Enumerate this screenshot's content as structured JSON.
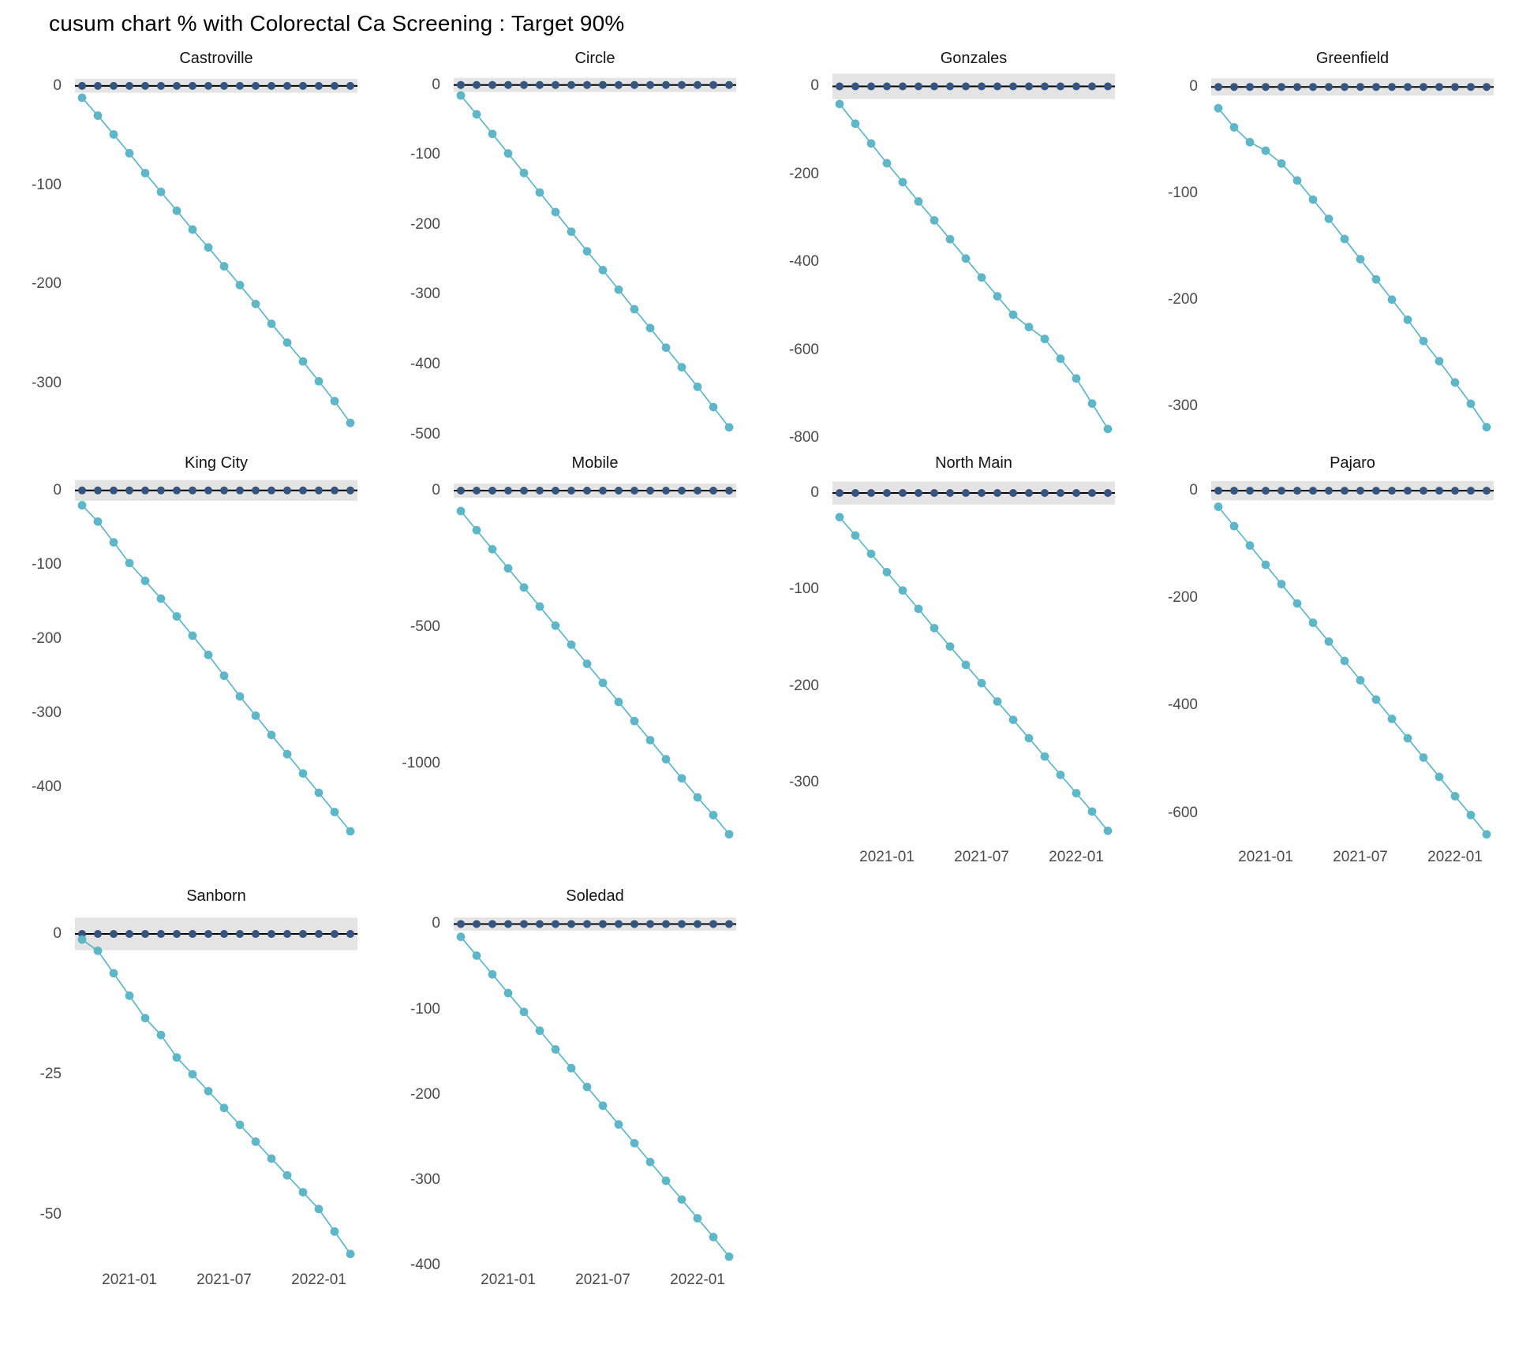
{
  "page_title": "cusum chart % with Colorectal Ca Screening : Target 90%",
  "colors": {
    "cusum_up_point": "#36547e",
    "cusum_up_line": "#000000",
    "cusum_down": "#5eb6c6",
    "control_band": "#e4e4e4",
    "tick_label": "#4a4a4a",
    "strip_label": "#141414",
    "background": "#ffffff"
  },
  "chart_data": {
    "type": "line",
    "title": "cusum chart % with Colorectal Ca Screening : Target 90%",
    "xlabel": "",
    "ylabel": "",
    "legend_position": "none",
    "grid": false,
    "x": [
      "2020-10",
      "2020-11",
      "2020-12",
      "2021-01",
      "2021-02",
      "2021-03",
      "2021-04",
      "2021-05",
      "2021-06",
      "2021-07",
      "2021-08",
      "2021-09",
      "2021-10",
      "2021-11",
      "2021-12",
      "2022-01",
      "2022-02",
      "2022-03"
    ],
    "x_tick_labels": [
      "2021-01",
      "2021-07",
      "2022-01"
    ],
    "x_tick_indices": [
      3,
      9,
      15
    ],
    "series": [
      {
        "name": "cusum_up",
        "description": "upper cusum, constant 0 in every facet, black line with dark navy points inside grey control band"
      },
      {
        "name": "cusum_down",
        "description": "lower cusum, steadily declining light teal line with points"
      }
    ],
    "band_meaning": "grey control-limit ribbon centred on 0",
    "facets": [
      {
        "name": "Castroville",
        "ylim": [
          -355,
          15
        ],
        "yticks": [
          0,
          -100,
          -200,
          -300
        ],
        "band_halfwidth": 7,
        "show_x_axis": false,
        "cusum_up_value": 0,
        "cusum_down": [
          -12,
          -30,
          -49,
          -68,
          -88,
          -107,
          -126,
          -145,
          -163,
          -182,
          -201,
          -220,
          -240,
          -259,
          -278,
          -298,
          -318,
          -340
        ]
      },
      {
        "name": "Circle",
        "ylim": [
          -505,
          20
        ],
        "yticks": [
          0,
          -100,
          -200,
          -300,
          -400,
          -500
        ],
        "band_halfwidth": 10,
        "show_x_axis": false,
        "cusum_up_value": 0,
        "cusum_down": [
          -15,
          -42,
          -70,
          -98,
          -126,
          -154,
          -182,
          -210,
          -238,
          -265,
          -293,
          -321,
          -348,
          -376,
          -404,
          -432,
          -461,
          -490
        ]
      },
      {
        "name": "Gonzales",
        "ylim": [
          -800,
          35
        ],
        "yticks": [
          0,
          -200,
          -400,
          -600,
          -800
        ],
        "band_halfwidth": 29,
        "show_x_axis": false,
        "cusum_up_value": 0,
        "cusum_down": [
          -40,
          -85,
          -130,
          -175,
          -218,
          -262,
          -305,
          -348,
          -392,
          -435,
          -478,
          -520,
          -548,
          -575,
          -620,
          -665,
          -722,
          -780
        ]
      },
      {
        "name": "Greenfield",
        "ylim": [
          -330,
          15
        ],
        "yticks": [
          0,
          -100,
          -200,
          -300
        ],
        "band_halfwidth": 8,
        "show_x_axis": false,
        "cusum_up_value": 0,
        "cusum_down": [
          -20,
          -38,
          -52,
          -60,
          -72,
          -88,
          -106,
          -124,
          -143,
          -162,
          -181,
          -200,
          -219,
          -239,
          -258,
          -278,
          -298,
          -320
        ]
      },
      {
        "name": "King City",
        "ylim": [
          -475,
          20
        ],
        "yticks": [
          0,
          -100,
          -200,
          -300,
          -400
        ],
        "band_halfwidth": 14,
        "show_x_axis": false,
        "cusum_up_value": 0,
        "cusum_down": [
          -20,
          -42,
          -70,
          -98,
          -122,
          -146,
          -170,
          -196,
          -222,
          -250,
          -278,
          -304,
          -330,
          -356,
          -382,
          -408,
          -434,
          -460
        ]
      },
      {
        "name": "Mobile",
        "ylim": [
          -1290,
          55
        ],
        "yticks": [
          0,
          -500,
          -1000
        ],
        "band_halfwidth": 26,
        "show_x_axis": false,
        "cusum_up_value": 0,
        "cusum_down": [
          -75,
          -145,
          -215,
          -285,
          -355,
          -425,
          -495,
          -565,
          -635,
          -705,
          -775,
          -845,
          -915,
          -985,
          -1055,
          -1125,
          -1190,
          -1260
        ]
      },
      {
        "name": "North Main",
        "ylim": [
          -362,
          18
        ],
        "yticks": [
          0,
          -100,
          -200,
          -300
        ],
        "band_halfwidth": 12,
        "show_x_axis": true,
        "cusum_up_value": 0,
        "cusum_down": [
          -25,
          -44,
          -63,
          -82,
          -101,
          -120,
          -140,
          -159,
          -178,
          -197,
          -216,
          -235,
          -254,
          -273,
          -292,
          -311,
          -330,
          -350
        ]
      },
      {
        "name": "Pajaro",
        "ylim": [
          -655,
          28
        ],
        "yticks": [
          0,
          -200,
          -400,
          -600
        ],
        "band_halfwidth": 18,
        "show_x_axis": true,
        "cusum_up_value": 0,
        "cusum_down": [
          -30,
          -66,
          -102,
          -138,
          -174,
          -210,
          -246,
          -281,
          -317,
          -353,
          -389,
          -425,
          -461,
          -497,
          -533,
          -569,
          -604,
          -640
        ]
      },
      {
        "name": "Sanborn",
        "ylim": [
          -59,
          4.5
        ],
        "yticks": [
          0,
          -25,
          -50
        ],
        "band_halfwidth": 2.9,
        "show_x_axis": true,
        "cusum_up_value": 0,
        "cusum_down": [
          -1,
          -3,
          -7,
          -11,
          -15,
          -18,
          -22,
          -25,
          -28,
          -31,
          -34,
          -37,
          -40,
          -43,
          -46,
          -49,
          -53,
          -57
        ]
      },
      {
        "name": "Soledad",
        "ylim": [
          -400,
          18
        ],
        "yticks": [
          0,
          -100,
          -200,
          -300,
          -400
        ],
        "band_halfwidth": 7.7,
        "show_x_axis": true,
        "cusum_up_value": 0,
        "cusum_down": [
          -15,
          -37,
          -59,
          -81,
          -103,
          -125,
          -147,
          -169,
          -191,
          -213,
          -235,
          -257,
          -279,
          -301,
          -323,
          -345,
          -367,
          -390
        ]
      }
    ]
  }
}
